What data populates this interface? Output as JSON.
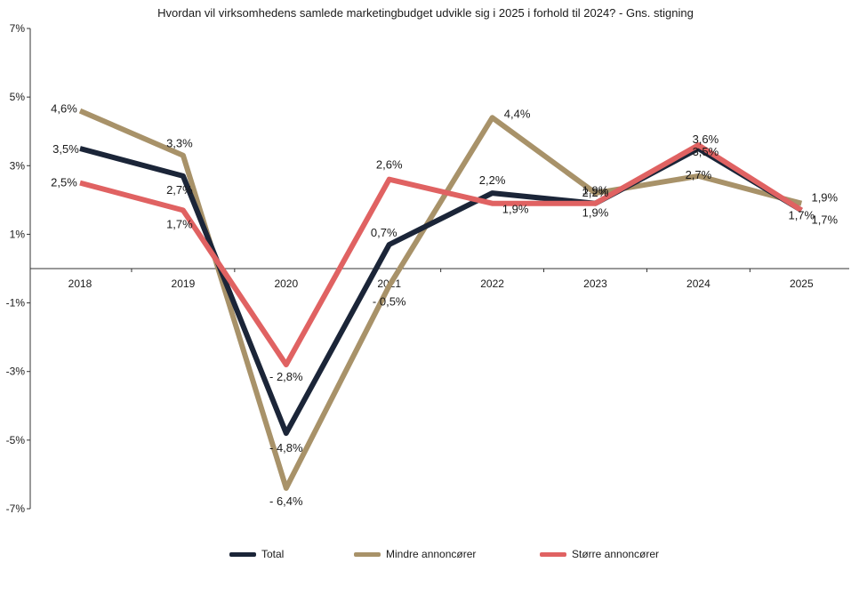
{
  "chart_data": {
    "type": "line",
    "title": "Hvordan vil virksomhedens samlede marketingbudget udvikle sig i 2025 i forhold til 2024? - Gns. stigning",
    "categories": [
      "2018",
      "2019",
      "2020",
      "2021",
      "2022",
      "2023",
      "2024",
      "2025"
    ],
    "y_ticks": [
      "7%",
      "5%",
      "3%",
      "1%",
      "-1%",
      "-3%",
      "-5%",
      "-7%"
    ],
    "ylim": [
      -7,
      7
    ],
    "series": [
      {
        "name": "Total",
        "color": "#1b2538",
        "values": [
          3.5,
          2.7,
          -4.8,
          0.7,
          2.2,
          1.9,
          3.5,
          1.7
        ],
        "labels": [
          "3,5%",
          "2,7%",
          "- 4,8%",
          "0,7%",
          "2,2%",
          "1,9%",
          "3,5%",
          "1,7%"
        ]
      },
      {
        "name": "Mindre annoncører",
        "color": "#a89269",
        "values": [
          4.6,
          3.3,
          -6.4,
          -0.5,
          4.4,
          2.2,
          2.7,
          1.9
        ],
        "labels": [
          "4,6%",
          "3,3%",
          "- 6,4%",
          "- 0,5%",
          "4,4%",
          "2,2%",
          "2,7%",
          "1,9%"
        ]
      },
      {
        "name": "Større annoncører",
        "color": "#e06262",
        "values": [
          2.5,
          1.7,
          -2.8,
          2.6,
          1.9,
          1.9,
          3.6,
          1.7
        ],
        "labels": [
          "2,5%",
          "1,7%",
          "- 2,8%",
          "2,6%",
          "1,9%",
          "1,9%",
          "3,6%",
          "1,7%"
        ]
      }
    ],
    "legend_position": "bottom",
    "grid": false
  }
}
